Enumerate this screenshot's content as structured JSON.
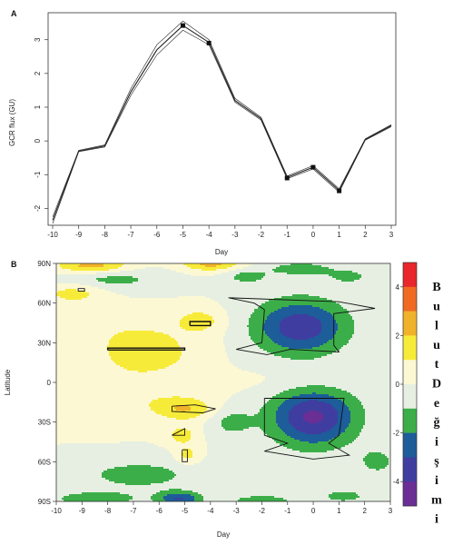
{
  "chart_data": [
    {
      "type": "line",
      "panel": "A",
      "xlabel": "Day",
      "ylabel": "GCR flux (GU)",
      "xlim": [
        -10,
        3
      ],
      "ylim": [
        -2.5,
        3.8
      ],
      "x_ticks": [
        -10,
        -9,
        -8,
        -7,
        -6,
        -5,
        -4,
        -3,
        -2,
        -1,
        0,
        1,
        2,
        3
      ],
      "y_ticks": [
        -2,
        -1,
        0,
        1,
        2,
        3
      ],
      "y_tick_labels": [
        "-2",
        "-1",
        "0",
        "1",
        "2",
        "3"
      ],
      "series": [
        {
          "x": [
            -10,
            -9,
            -8,
            -7,
            -6,
            -5,
            -4,
            -3,
            -2,
            -1,
            0,
            1,
            2,
            3
          ],
          "values": [
            -2.45,
            -0.32,
            -0.18,
            1.35,
            2.55,
            3.28,
            2.85,
            1.15,
            0.62,
            -1.12,
            -0.83,
            -1.52,
            0.02,
            0.42
          ]
        },
        {
          "x": [
            -10,
            -9,
            -8,
            -7,
            -6,
            -5,
            -4,
            -3,
            -2,
            -1,
            0,
            1,
            2,
            3
          ],
          "values": [
            -2.35,
            -0.3,
            -0.15,
            1.45,
            2.7,
            3.42,
            2.92,
            1.2,
            0.66,
            -1.08,
            -0.78,
            -1.47,
            0.04,
            0.45
          ]
        },
        {
          "x": [
            -10,
            -9,
            -8,
            -7,
            -6,
            -5,
            -4,
            -3,
            -2,
            -1,
            0,
            1,
            2,
            3
          ],
          "values": [
            -2.25,
            -0.28,
            -0.12,
            1.55,
            2.85,
            3.55,
            3.0,
            1.26,
            0.7,
            -1.04,
            -0.73,
            -1.42,
            0.06,
            0.48
          ]
        }
      ],
      "markers": [
        {
          "x": -5,
          "y": 3.42
        },
        {
          "x": -4,
          "y": 2.9
        },
        {
          "x": -1,
          "y": -1.1
        },
        {
          "x": 0,
          "y": -0.78
        },
        {
          "x": 1,
          "y": -1.48
        }
      ]
    },
    {
      "type": "heatmap",
      "panel": "B",
      "xlabel": "Day",
      "ylabel": "Latitude",
      "xlim": [
        -10,
        3
      ],
      "ylim": [
        -90,
        90
      ],
      "x_ticks": [
        -10,
        -9,
        -8,
        -7,
        -6,
        -5,
        -4,
        -3,
        -2,
        -1,
        0,
        1,
        2,
        3
      ],
      "y_ticks": [
        90,
        60,
        30,
        0,
        -30,
        -60,
        -90
      ],
      "y_tick_labels": [
        "90N",
        "60N",
        "30N",
        "0",
        "30S",
        "60S",
        "90S"
      ],
      "colorbar": {
        "range": [
          -5,
          5
        ],
        "tick_values": [
          4,
          2,
          0,
          -2,
          -4
        ],
        "tick_labels": [
          "4",
          "2",
          "0",
          "-2",
          "-4"
        ],
        "levels": [
          {
            "from": 4,
            "to": 5,
            "color": "#e8262b"
          },
          {
            "from": 3,
            "to": 4,
            "color": "#f06a22"
          },
          {
            "from": 2,
            "to": 3,
            "color": "#f0b22b"
          },
          {
            "from": 1,
            "to": 2,
            "color": "#f7eb3a"
          },
          {
            "from": 0,
            "to": 1,
            "color": "#fcf8d3"
          },
          {
            "from": -1,
            "to": 0,
            "color": "#e6efe2"
          },
          {
            "from": -2,
            "to": -1,
            "color": "#3cae49"
          },
          {
            "from": -3,
            "to": -2,
            "color": "#1c5d9a"
          },
          {
            "from": -4,
            "to": -3,
            "color": "#3f3ea0"
          },
          {
            "from": -5,
            "to": -4,
            "color": "#6a2e95"
          }
        ]
      },
      "anomalies": [
        {
          "day": -0.5,
          "lat": 42,
          "sx": 1.3,
          "sy": 15,
          "amp": -3.7
        },
        {
          "day": 0.0,
          "lat": -26,
          "sx": 1.2,
          "sy": 16,
          "amp": -4.2
        },
        {
          "day": -8.0,
          "lat": 78,
          "sx": 1.5,
          "sy": 6,
          "amp": -1.4
        },
        {
          "day": -8.6,
          "lat": 88,
          "sx": 1.0,
          "sy": 4,
          "amp": 2.6
        },
        {
          "day": -4.0,
          "lat": 90,
          "sx": 0.8,
          "sy": 4,
          "amp": 2.4
        },
        {
          "day": -2.6,
          "lat": 80,
          "sx": 0.6,
          "sy": 4,
          "amp": -1.4
        },
        {
          "day": -0.5,
          "lat": 86,
          "sx": 1.0,
          "sy": 4,
          "amp": -1.5
        },
        {
          "day": 1.4,
          "lat": 80,
          "sx": 0.6,
          "sy": 4,
          "amp": -1.3
        },
        {
          "day": -9.3,
          "lat": 68,
          "sx": 0.9,
          "sy": 6,
          "amp": 1.5
        },
        {
          "day": -6.5,
          "lat": 20,
          "sx": 1.3,
          "sy": 10,
          "amp": 1.5
        },
        {
          "day": -4.4,
          "lat": 47,
          "sx": 0.6,
          "sy": 6,
          "amp": 1.4
        },
        {
          "day": -5.0,
          "lat": -20,
          "sx": 0.8,
          "sy": 6,
          "amp": 1.9
        },
        {
          "day": -5.1,
          "lat": -40,
          "sx": 0.4,
          "sy": 5,
          "amp": 1.5
        },
        {
          "day": -4.9,
          "lat": -55,
          "sx": 0.3,
          "sy": 5,
          "amp": 1.4
        },
        {
          "day": -6.8,
          "lat": -70,
          "sx": 1.6,
          "sy": 8,
          "amp": -1.5
        },
        {
          "day": -3.2,
          "lat": -30,
          "sx": 0.6,
          "sy": 8,
          "amp": -1.3
        },
        {
          "day": 2.5,
          "lat": -60,
          "sx": 0.6,
          "sy": 8,
          "amp": -1.3
        },
        {
          "day": -8.5,
          "lat": -88,
          "sx": 1.3,
          "sy": 4,
          "amp": -1.6
        },
        {
          "day": -5.2,
          "lat": -88,
          "sx": 0.6,
          "sy": 4,
          "amp": -3.0
        },
        {
          "day": -2.0,
          "lat": -90,
          "sx": 1.0,
          "sy": 4,
          "amp": -1.6
        },
        {
          "day": 1.2,
          "lat": -86,
          "sx": 0.7,
          "sy": 4,
          "amp": -1.4
        },
        {
          "day": -7.5,
          "lat": -10,
          "sx": 1.8,
          "sy": 12,
          "amp": 0.9
        },
        {
          "day": -7.0,
          "lat": 38,
          "sx": 2.0,
          "sy": 10,
          "amp": 0.8
        },
        {
          "day": -0.5,
          "lat": 0,
          "sx": 1.5,
          "sy": 8,
          "amp": 0.5
        }
      ],
      "significance_contours": [
        [
          [
            -3.3,
            64
          ],
          [
            1.0,
            61
          ],
          [
            2.4,
            56
          ],
          [
            0.8,
            52
          ],
          [
            0.8,
            28
          ],
          [
            1.0,
            23
          ],
          [
            -0.9,
            25
          ],
          [
            -1.8,
            21
          ],
          [
            -3.0,
            25
          ],
          [
            -2.0,
            30
          ],
          [
            -1.9,
            55
          ],
          [
            -2.3,
            60
          ],
          [
            -3.3,
            64
          ]
        ],
        [
          [
            -1.9,
            -12
          ],
          [
            1.2,
            -12
          ],
          [
            1.0,
            -40
          ],
          [
            0.6,
            -46
          ],
          [
            1.4,
            -55
          ],
          [
            0.0,
            -58
          ],
          [
            -1.9,
            -52
          ],
          [
            -1.0,
            -46
          ],
          [
            -1.9,
            -40
          ],
          [
            -1.9,
            -12
          ]
        ],
        [
          [
            -8.0,
            24.5
          ],
          [
            -5.0,
            24.5
          ],
          [
            -5.0,
            26
          ],
          [
            -8.0,
            26
          ],
          [
            -8.0,
            24.5
          ]
        ],
        [
          [
            -4.8,
            43
          ],
          [
            -4.0,
            43
          ],
          [
            -4.0,
            46
          ],
          [
            -4.8,
            46
          ],
          [
            -4.8,
            43
          ]
        ],
        [
          [
            -5.5,
            -18
          ],
          [
            -4.6,
            -17
          ],
          [
            -3.8,
            -20
          ],
          [
            -4.3,
            -23
          ],
          [
            -5.5,
            -22
          ],
          [
            -5.5,
            -18
          ]
        ],
        [
          [
            -5.5,
            -40
          ],
          [
            -5.0,
            -35
          ],
          [
            -5.0,
            -40
          ],
          [
            -5.5,
            -40
          ]
        ],
        [
          [
            -5.1,
            -51
          ],
          [
            -4.9,
            -51
          ],
          [
            -4.9,
            -60
          ],
          [
            -5.1,
            -60
          ],
          [
            -5.1,
            -51
          ]
        ],
        [
          [
            -9.15,
            69
          ],
          [
            -8.9,
            69
          ],
          [
            -8.9,
            71
          ],
          [
            -9.15,
            71
          ],
          [
            -9.15,
            69
          ]
        ]
      ],
      "side_text": [
        "B",
        "u",
        "l",
        "u",
        "t",
        "D",
        "e",
        "ğ",
        "i",
        "ş",
        "i",
        "m",
        "i"
      ]
    }
  ]
}
